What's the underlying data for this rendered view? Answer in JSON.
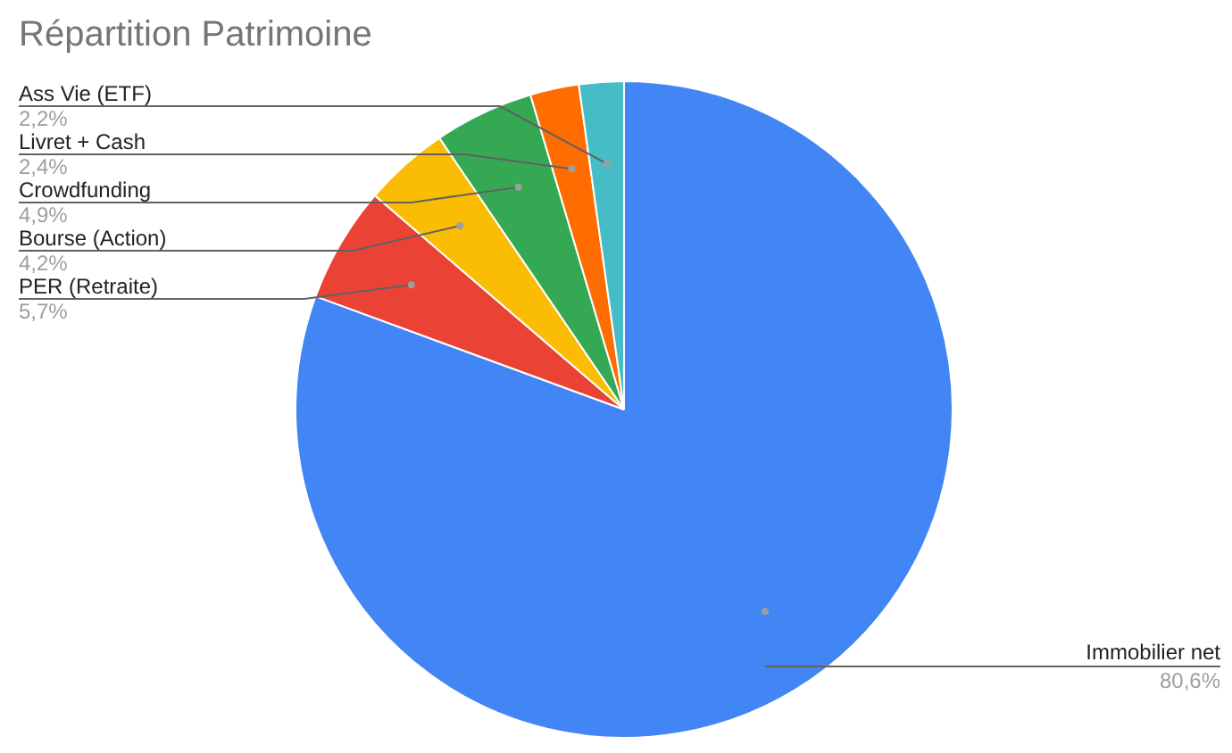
{
  "chart_data": {
    "type": "pie",
    "title": "Répartition Patrimoine",
    "categories": [
      "Immobilier net",
      "PER (Retraite)",
      "Bourse (Action)",
      "Crowdfunding",
      "Livret + Cash",
      "Ass Vie (ETF)"
    ],
    "values": [
      80.6,
      5.7,
      4.2,
      4.9,
      2.4,
      2.2
    ],
    "value_labels": [
      "80,6%",
      "5,7%",
      "4,2%",
      "4,9%",
      "2,4%",
      "2,2%"
    ],
    "colors": [
      "#4285f4",
      "#ea4335",
      "#fbbc04",
      "#34a853",
      "#ff6d01",
      "#46bdc6"
    ]
  }
}
